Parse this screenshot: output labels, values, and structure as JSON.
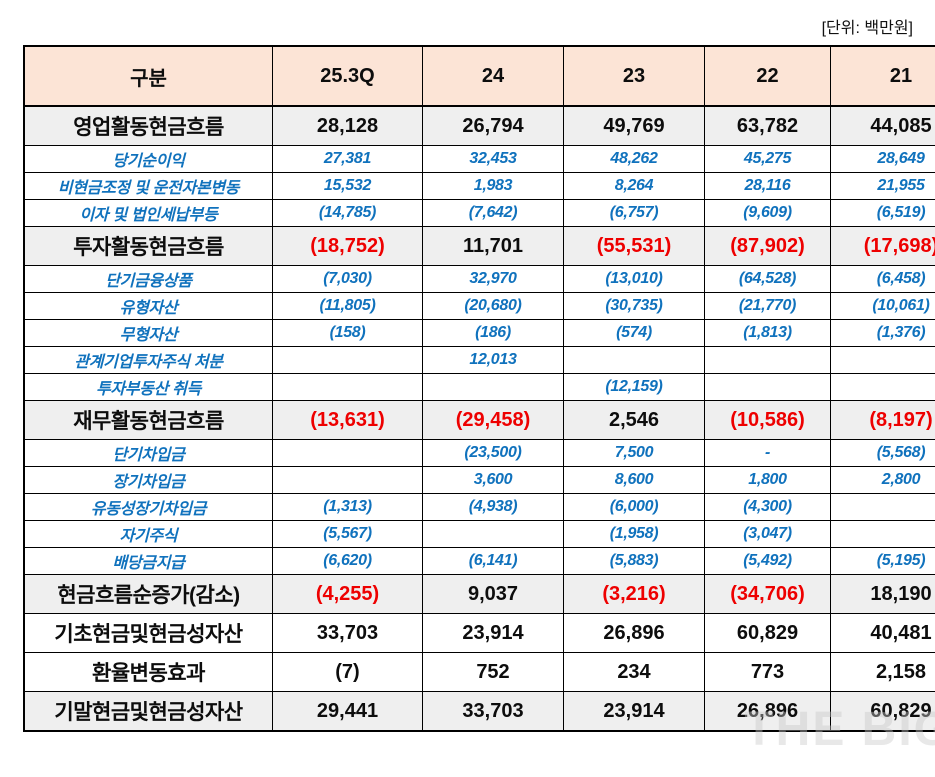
{
  "unit_label": "[단위: 백만원]",
  "watermark": "THE BIG",
  "colors": {
    "header_bg": "#FCE4D6",
    "section_bg": "#EFEFEF",
    "detail_text": "#1072BD",
    "negative_text": "#EE0000",
    "border": "#000000"
  },
  "table": {
    "columns": [
      "구분",
      "25.3Q",
      "24",
      "23",
      "22",
      "21"
    ],
    "rows": [
      {
        "label": "영업활동현금흐름",
        "type": "section",
        "neg_red": false,
        "values": [
          "28,128",
          "26,794",
          "49,769",
          "63,782",
          "44,085"
        ]
      },
      {
        "label": "당기순이익",
        "type": "detail",
        "neg_red": false,
        "values": [
          "27,381",
          "32,453",
          "48,262",
          "45,275",
          "28,649"
        ]
      },
      {
        "label": "비현금조정 및 운전자본변동",
        "type": "detail",
        "neg_red": false,
        "values": [
          "15,532",
          "1,983",
          "8,264",
          "28,116",
          "21,955"
        ]
      },
      {
        "label": "이자 및 법인세납부등",
        "type": "detail",
        "neg_red": false,
        "values": [
          "(14,785)",
          "(7,642)",
          "(6,757)",
          "(9,609)",
          "(6,519)"
        ]
      },
      {
        "label": "투자활동현금흐름",
        "type": "section",
        "neg_red": true,
        "values": [
          "(18,752)",
          "11,701",
          "(55,531)",
          "(87,902)",
          "(17,698)"
        ]
      },
      {
        "label": "단기금융상품",
        "type": "detail",
        "neg_red": false,
        "values": [
          "(7,030)",
          "32,970",
          "(13,010)",
          "(64,528)",
          "(6,458)"
        ]
      },
      {
        "label": "유형자산",
        "type": "detail",
        "neg_red": false,
        "values": [
          "(11,805)",
          "(20,680)",
          "(30,735)",
          "(21,770)",
          "(10,061)"
        ]
      },
      {
        "label": "무형자산",
        "type": "detail",
        "neg_red": false,
        "values": [
          "(158)",
          "(186)",
          "(574)",
          "(1,813)",
          "(1,376)"
        ]
      },
      {
        "label": "관계기업투자주식 처분",
        "type": "detail",
        "neg_red": false,
        "values": [
          "",
          "12,013",
          "",
          "",
          ""
        ]
      },
      {
        "label": "투자부동산 취득",
        "type": "detail",
        "neg_red": false,
        "values": [
          "",
          "",
          "(12,159)",
          "",
          ""
        ]
      },
      {
        "label": "재무활동현금흐름",
        "type": "section",
        "neg_red": true,
        "values": [
          "(13,631)",
          "(29,458)",
          "2,546",
          "(10,586)",
          "(8,197)"
        ]
      },
      {
        "label": "단기차입금",
        "type": "detail",
        "neg_red": false,
        "values": [
          "",
          "(23,500)",
          "7,500",
          "-",
          "(5,568)"
        ]
      },
      {
        "label": "장기차입금",
        "type": "detail",
        "neg_red": false,
        "values": [
          "",
          "3,600",
          "8,600",
          "1,800",
          "2,800"
        ]
      },
      {
        "label": "유동성장기차입금",
        "type": "detail",
        "neg_red": false,
        "values": [
          "(1,313)",
          "(4,938)",
          "(6,000)",
          "(4,300)",
          ""
        ]
      },
      {
        "label": "자기주식",
        "type": "detail",
        "neg_red": false,
        "values": [
          "(5,567)",
          "",
          "(1,958)",
          "(3,047)",
          ""
        ]
      },
      {
        "label": "배당금지급",
        "type": "detail",
        "neg_red": false,
        "values": [
          "(6,620)",
          "(6,141)",
          "(5,883)",
          "(5,492)",
          "(5,195)"
        ]
      },
      {
        "label": "현금흐름순증가(감소)",
        "type": "section",
        "neg_red": true,
        "values": [
          "(4,255)",
          "9,037",
          "(3,216)",
          "(34,706)",
          "18,190"
        ]
      },
      {
        "label": "기초현금및현금성자산",
        "type": "total",
        "neg_red": false,
        "values": [
          "33,703",
          "23,914",
          "26,896",
          "60,829",
          "40,481"
        ]
      },
      {
        "label": "환율변동효과",
        "type": "total",
        "neg_red": false,
        "values": [
          "(7)",
          "752",
          "234",
          "773",
          "2,158"
        ]
      },
      {
        "label": "기말현금및현금성자산",
        "type": "section",
        "neg_red": false,
        "values": [
          "29,441",
          "33,703",
          "23,914",
          "26,896",
          "60,829"
        ]
      }
    ]
  }
}
